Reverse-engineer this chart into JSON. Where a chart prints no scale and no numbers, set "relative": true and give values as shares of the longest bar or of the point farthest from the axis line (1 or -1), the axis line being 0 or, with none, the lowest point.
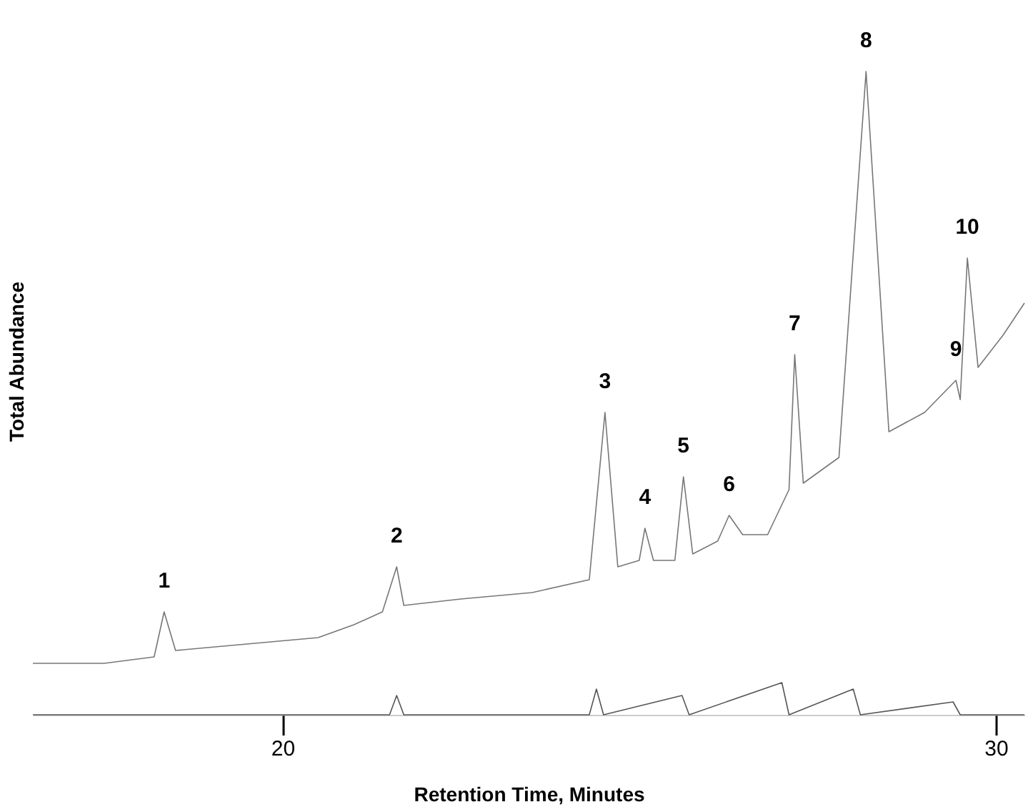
{
  "chart_data": {
    "type": "line",
    "relative": true,
    "xlabel": "Retention Time, Minutes",
    "ylabel": "Total Abundance",
    "xlim": [
      16.5,
      30.4
    ],
    "xticks": [
      20,
      30
    ],
    "grid": false,
    "marker": "none",
    "line_style": "solid",
    "series": [
      {
        "color": "#777777",
        "x": [
          16.5,
          17.5,
          18.2,
          18.34,
          18.5,
          19.5,
          20.5,
          21.0,
          21.4,
          21.6,
          21.7,
          22.5,
          23.5,
          24.3,
          24.52,
          24.7,
          25.0,
          25.08,
          25.2,
          25.5,
          25.62,
          25.75,
          26.1,
          26.26,
          26.45,
          26.8,
          27.1,
          27.18,
          27.3,
          27.8,
          28.18,
          28.5,
          29.0,
          29.44,
          29.5,
          29.6,
          29.75,
          30.1,
          30.4
        ],
        "values": [
          0.08,
          0.08,
          0.09,
          0.16,
          0.1,
          0.11,
          0.12,
          0.14,
          0.16,
          0.23,
          0.17,
          0.18,
          0.19,
          0.21,
          0.47,
          0.23,
          0.24,
          0.29,
          0.24,
          0.24,
          0.37,
          0.25,
          0.27,
          0.31,
          0.28,
          0.28,
          0.35,
          0.56,
          0.36,
          0.4,
          1,
          0.44,
          0.47,
          0.52,
          0.49,
          0.71,
          0.54,
          0.59,
          0.64
        ]
      },
      {
        "color": "#555555",
        "x": [
          16.5,
          21.5,
          21.6,
          21.7,
          24.3,
          24.4,
          24.5,
          25.6,
          25.7,
          27.0,
          27.1,
          28.0,
          28.1,
          29.4,
          29.5,
          30.4
        ],
        "values": [
          0,
          0,
          0.03,
          0,
          0,
          0.04,
          0,
          0.03,
          0,
          0.05,
          0,
          0.04,
          0,
          0.02,
          0,
          0
        ]
      }
    ],
    "annotations": [
      {
        "text": "1",
        "x": 18.34,
        "y": 0.16
      },
      {
        "text": "2",
        "x": 21.6,
        "y": 0.23
      },
      {
        "text": "3",
        "x": 24.52,
        "y": 0.47
      },
      {
        "text": "4",
        "x": 25.08,
        "y": 0.29
      },
      {
        "text": "5",
        "x": 25.62,
        "y": 0.37
      },
      {
        "text": "6",
        "x": 26.26,
        "y": 0.31
      },
      {
        "text": "7",
        "x": 27.18,
        "y": 0.56
      },
      {
        "text": "8",
        "x": 28.18,
        "y": 1
      },
      {
        "text": "9",
        "x": 29.44,
        "y": 0.52
      },
      {
        "text": "10",
        "x": 29.6,
        "y": 0.71
      }
    ]
  }
}
